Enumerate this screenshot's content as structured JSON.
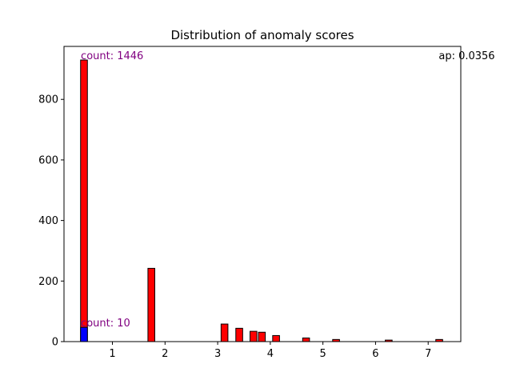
{
  "chart_data": {
    "type": "bar",
    "title": "Distribution of anomaly scores",
    "xlabel": "",
    "ylabel": "",
    "xlim": [
      0.08,
      7.62
    ],
    "ylim": [
      0,
      975
    ],
    "x_ticks": [
      1,
      2,
      3,
      4,
      5,
      6,
      7
    ],
    "y_ticks": [
      0,
      200,
      400,
      600,
      800
    ],
    "bar_width": 0.13,
    "series": [
      {
        "color": "#ff0000",
        "x": [
          0.46,
          1.74,
          3.13,
          3.41,
          3.68,
          3.84,
          4.11,
          4.68,
          5.25,
          6.25,
          7.21
        ],
        "values": [
          930,
          242,
          58,
          44,
          34,
          31,
          20,
          12,
          7,
          5,
          7
        ]
      },
      {
        "color": "#0000ff",
        "x": [
          0.46
        ],
        "values": [
          47
        ]
      }
    ],
    "annotations": [
      {
        "text": "count: 1446",
        "x": 0.4,
        "y": 930,
        "color": "#800080",
        "anchor": "start"
      },
      {
        "text": "count: 10",
        "x": 0.4,
        "y": 47,
        "color": "#800080",
        "anchor": "start"
      },
      {
        "text": "ap: 0.0356",
        "x": 7.2,
        "y": 930,
        "color": "#000000",
        "anchor": "start"
      }
    ]
  }
}
